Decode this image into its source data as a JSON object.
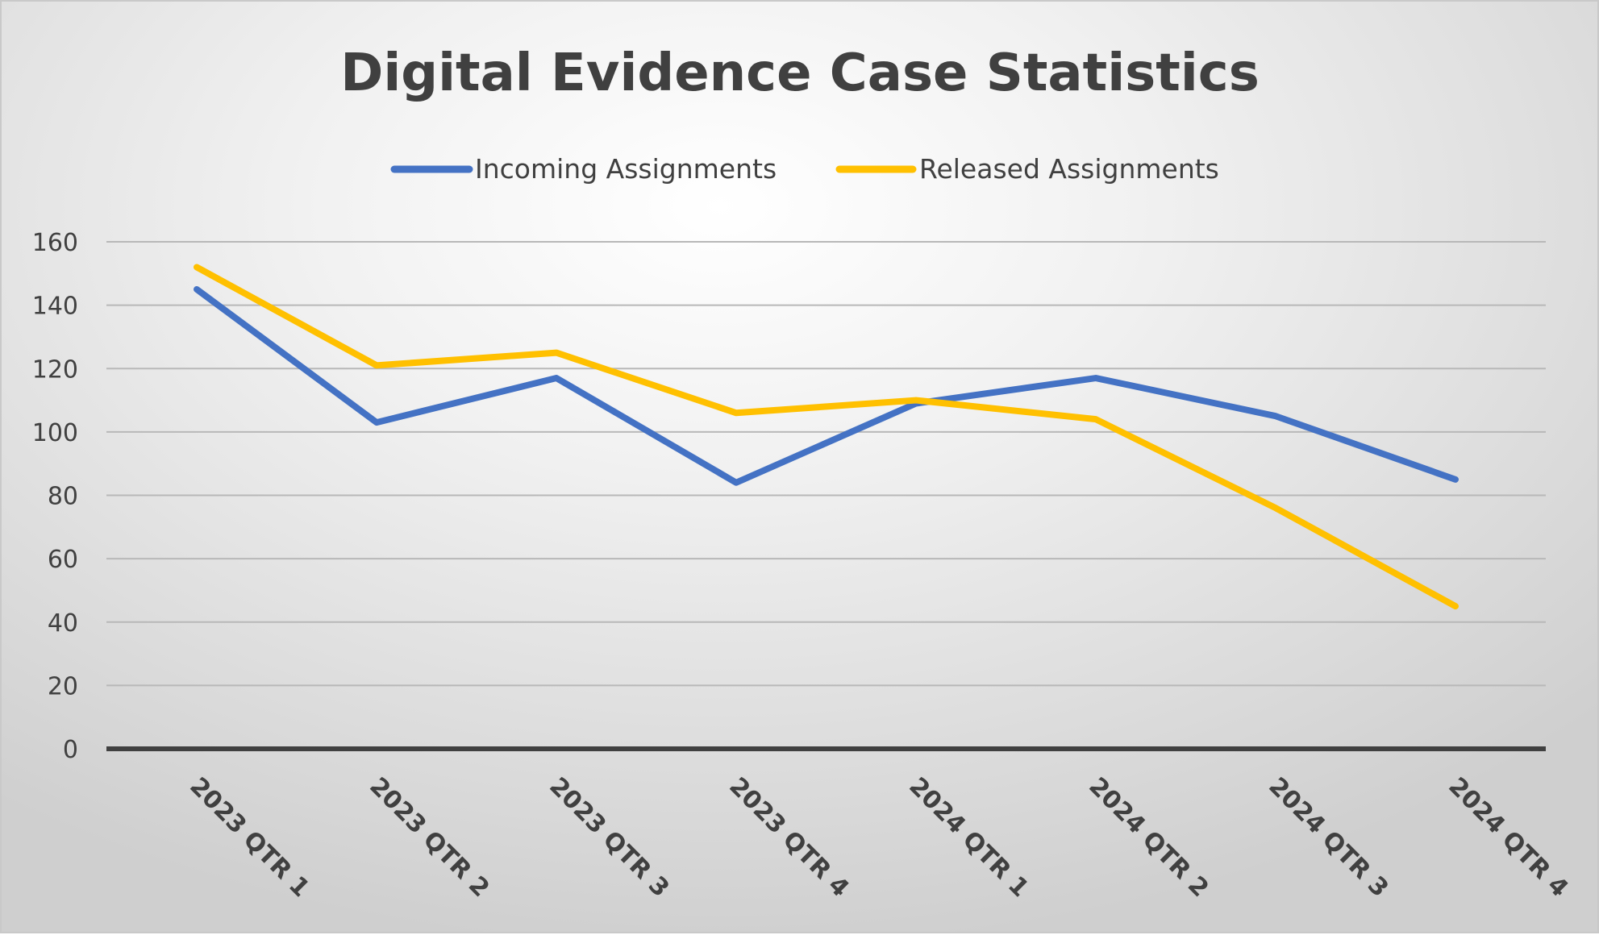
{
  "chart_data": {
    "type": "line",
    "title": "Digital Evidence Case Statistics",
    "xlabel": "",
    "ylabel": "",
    "categories": [
      "2023 QTR 1",
      "2023 QTR 2",
      "2023 QTR 3",
      "2023 QTR 4",
      "2024 QTR 1",
      "2024 QTR 2",
      "2024 QTR 3",
      "2024 QTR 4"
    ],
    "series": [
      {
        "name": "Incoming Assignments",
        "color": "#4472C4",
        "values": [
          145,
          103,
          117,
          84,
          109,
          117,
          105,
          85
        ]
      },
      {
        "name": "Released Assignments",
        "color": "#FFC000",
        "values": [
          152,
          121,
          125,
          106,
          110,
          104,
          76,
          45
        ]
      }
    ],
    "ylim": [
      0,
      160
    ],
    "yticks": [
      0,
      20,
      40,
      60,
      80,
      100,
      120,
      140,
      160
    ],
    "grid": true,
    "legend": "top-center"
  }
}
